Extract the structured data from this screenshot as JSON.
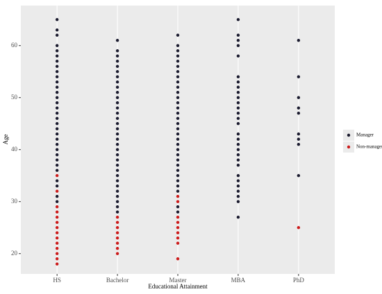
{
  "chart_data": {
    "type": "strip",
    "xlabel": "Educational Attainment",
    "ylabel": "Age",
    "categories": [
      "HS",
      "Bachelor",
      "Master",
      "MBA",
      "PhD"
    ],
    "ylim": [
      16.1,
      67.7
    ],
    "yticks": [
      20,
      30,
      40,
      50,
      60
    ],
    "grid": "x",
    "legend": "right",
    "series": [
      {
        "name": "Manager",
        "color": "#1a1a2e",
        "values": [
          [
            30,
            31,
            33,
            34,
            36,
            37,
            38,
            39,
            40,
            41,
            42,
            43,
            44,
            45,
            46,
            47,
            48,
            49,
            50,
            51,
            52,
            53,
            54,
            55,
            56,
            57,
            58,
            59,
            60,
            62,
            63,
            65
          ],
          [
            28,
            29,
            30,
            31,
            32,
            33,
            34,
            35,
            36,
            37,
            38,
            39,
            40,
            41,
            42,
            43,
            44,
            45,
            46,
            47,
            48,
            49,
            50,
            51,
            52,
            53,
            54,
            55,
            56,
            57,
            58,
            59,
            61
          ],
          [
            28,
            29,
            32,
            33,
            34,
            35,
            36,
            37,
            38,
            39,
            40,
            41,
            42,
            43,
            44,
            45,
            46,
            47,
            48,
            49,
            50,
            51,
            52,
            53,
            54,
            55,
            56,
            57,
            58,
            59,
            60,
            62
          ],
          [
            27,
            30,
            31,
            32,
            33,
            34,
            35,
            37,
            38,
            39,
            40,
            41,
            42,
            43,
            45,
            46,
            47,
            48,
            49,
            50,
            51,
            52,
            53,
            54,
            58,
            60,
            61,
            62,
            65
          ],
          [
            35,
            41,
            42,
            43,
            47,
            48,
            50,
            54,
            61
          ]
        ]
      },
      {
        "name": "Non-manager",
        "color": "#cc1a1a",
        "values": [
          [
            18,
            19,
            20,
            21,
            22,
            23,
            24,
            25,
            26,
            27,
            28,
            29,
            32,
            35
          ],
          [
            20,
            21,
            22,
            23,
            24,
            25,
            26,
            27
          ],
          [
            19,
            22,
            23,
            24,
            25,
            26,
            27,
            30,
            31
          ],
          [],
          [
            25
          ]
        ]
      }
    ]
  }
}
